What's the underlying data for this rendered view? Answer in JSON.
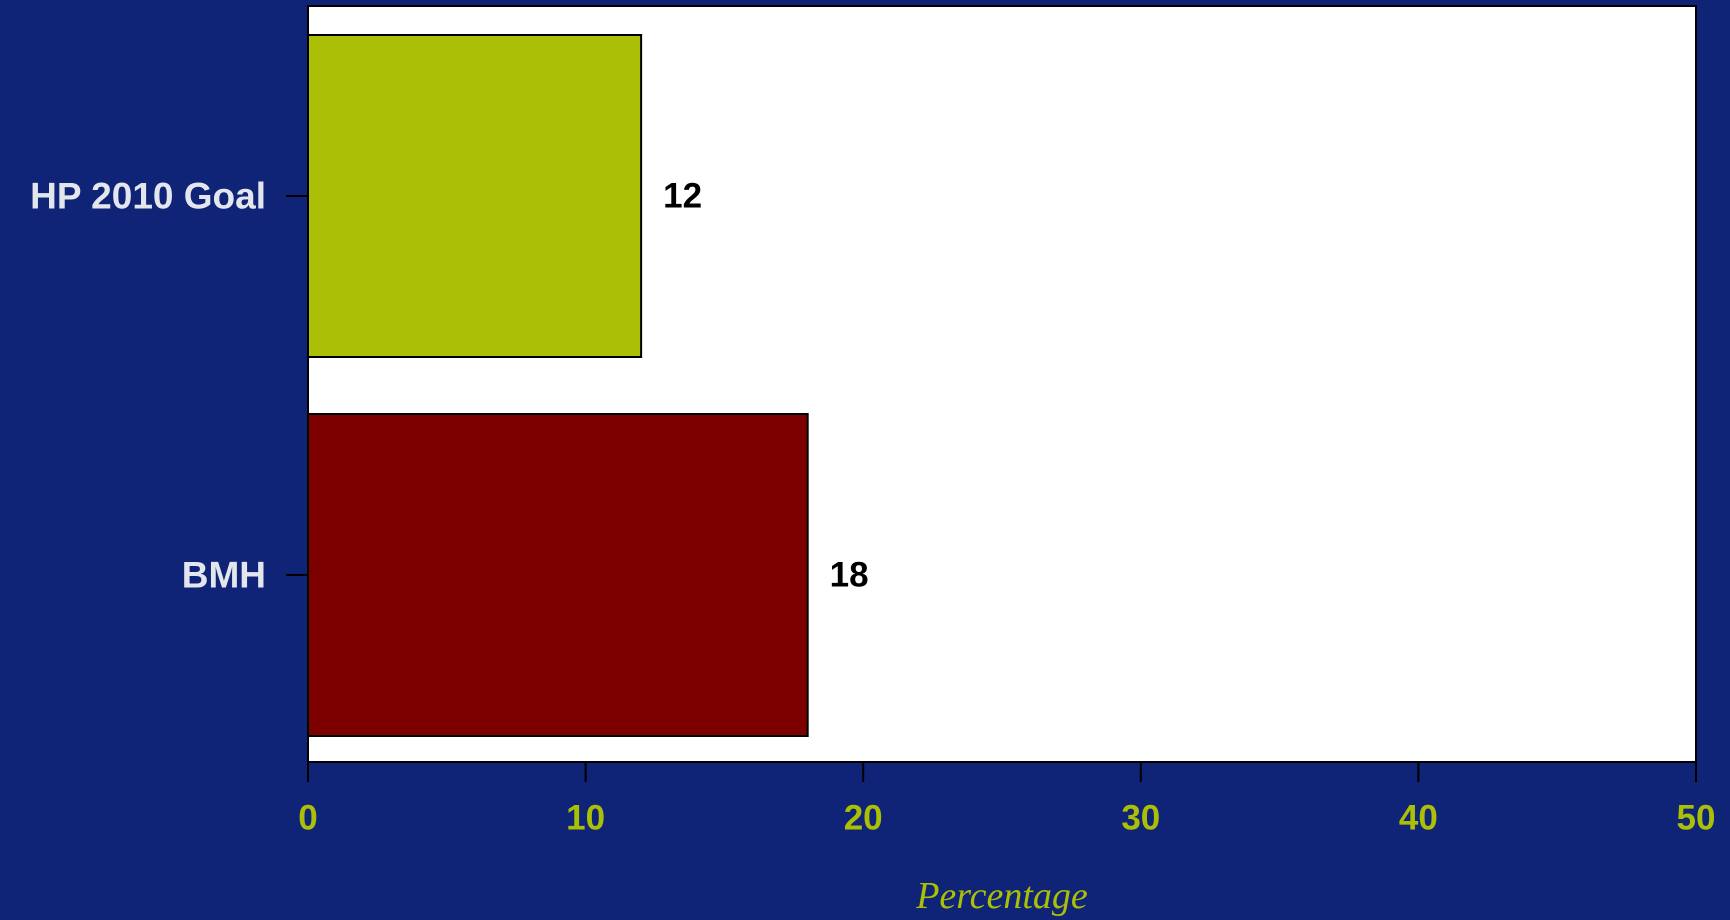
{
  "colors": {
    "background": "#0f2476",
    "plot_area": "#ffffff",
    "axis_text": "#abbf06",
    "category_text": "#e4e6ee",
    "value_text": "#000000"
  },
  "chart_data": {
    "type": "bar",
    "orientation": "horizontal",
    "title": "",
    "xlabel": "Percentage",
    "ylabel": "",
    "xlim": [
      0,
      50
    ],
    "x_ticks": [
      0,
      10,
      20,
      30,
      40,
      50
    ],
    "grid": false,
    "legend": "none",
    "bars": [
      {
        "category": "HP 2010 Goal",
        "value": 12,
        "value_label": "12",
        "color": "#abbf06"
      },
      {
        "category": "BMH",
        "value": 18,
        "value_label": "18",
        "color": "#7d0000"
      }
    ]
  }
}
